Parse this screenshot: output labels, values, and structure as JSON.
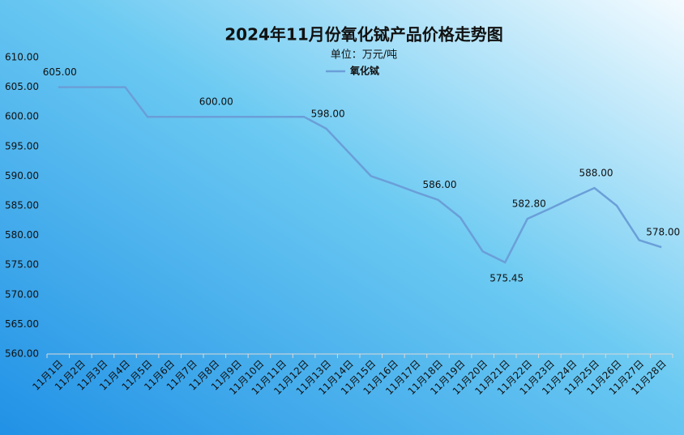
{
  "chart_data": {
    "type": "line",
    "title": "2024年11月份氧化铽产品价格走势图",
    "subtitle": "单位：万元/吨",
    "categories": [
      "11月1日",
      "11月2日",
      "11月3日",
      "11月4日",
      "11月5日",
      "11月6日",
      "11月7日",
      "11月8日",
      "11月9日",
      "11月10日",
      "11月11日",
      "11月12日",
      "11月13日",
      "11月14日",
      "11月15日",
      "11月16日",
      "11月17日",
      "11月18日",
      "11月19日",
      "11月20日",
      "11月21日",
      "11月22日",
      "11月23日",
      "11月24日",
      "11月25日",
      "11月26日",
      "11月27日",
      "11月28日"
    ],
    "series": [
      {
        "name": "氧化铽",
        "color": "#6a9fd8",
        "values": [
          605,
          605,
          605,
          605,
          600,
          600,
          600,
          600,
          600,
          600,
          600,
          600,
          598,
          594,
          590,
          588.7,
          587.3,
          586,
          583,
          577.3,
          575.45,
          582.8,
          584.5,
          586.3,
          588,
          585,
          579.2,
          578
        ],
        "value_labels": [
          "605.00",
          null,
          null,
          null,
          null,
          null,
          null,
          "600.00",
          null,
          null,
          null,
          null,
          "598.00",
          null,
          null,
          null,
          null,
          "586.00",
          null,
          null,
          "575.45",
          "582.80",
          null,
          null,
          "588.00",
          null,
          null,
          "578.00"
        ]
      }
    ],
    "ylim": [
      560,
      610
    ],
    "yticks": [
      {
        "value": 560,
        "label": "560.00"
      },
      {
        "value": 565,
        "label": "565.00"
      },
      {
        "value": 570,
        "label": "570.00"
      },
      {
        "value": 575,
        "label": "575.00"
      },
      {
        "value": 580,
        "label": "580.00"
      },
      {
        "value": 585,
        "label": "585.00"
      },
      {
        "value": 590,
        "label": "590.00"
      },
      {
        "value": 595,
        "label": "595.00"
      },
      {
        "value": 600,
        "label": "600.00"
      },
      {
        "value": 605,
        "label": "605.00"
      },
      {
        "value": 610,
        "label": "610.00"
      }
    ],
    "legend": "top"
  }
}
